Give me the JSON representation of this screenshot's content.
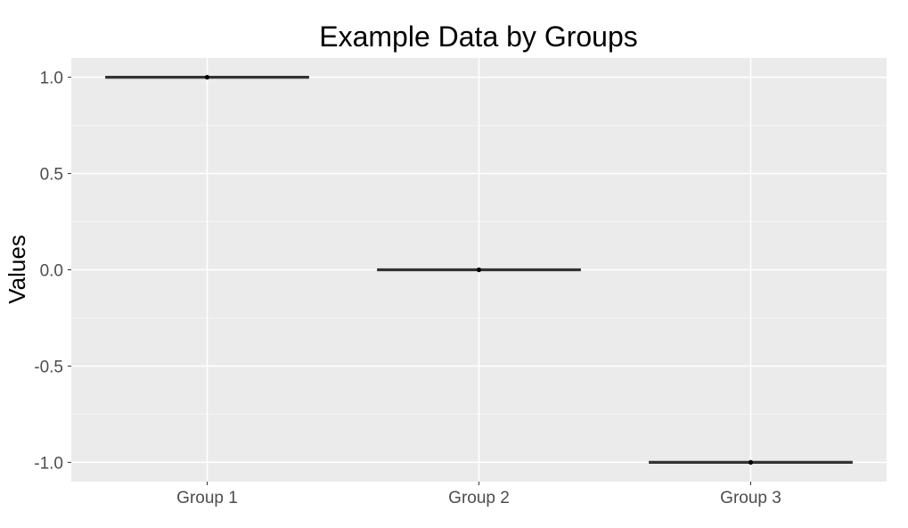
{
  "chart_data": {
    "type": "boxplot",
    "title": "Example Data by Groups",
    "xlabel": "",
    "ylabel": "Values",
    "categories": [
      "Group 1",
      "Group 2",
      "Group 3"
    ],
    "values": [
      1.0,
      0.0,
      -1.0
    ],
    "y_ticks": [
      1.0,
      0.5,
      0.0,
      -0.5,
      -1.0
    ],
    "y_tick_labels": [
      "1.0",
      "0.5",
      "0.0",
      "-0.5",
      "-1.0"
    ],
    "ylim": [
      -1.1,
      1.1
    ],
    "grid": true,
    "legend": "none",
    "colors": {
      "panel_background": "#ebebeb",
      "grid_major": "#ffffff",
      "grid_minor": "#f5f5f5",
      "box_line": "#333333",
      "point": "#000000",
      "tick_label": "#4d4d4d"
    }
  }
}
